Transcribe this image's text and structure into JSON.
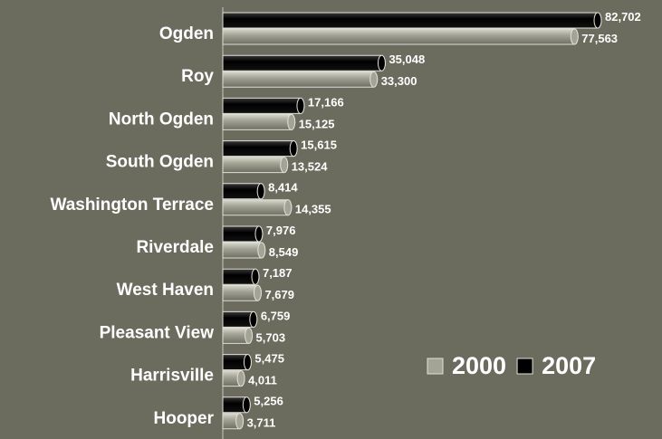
{
  "chart_data": {
    "type": "bar",
    "orientation": "horizontal",
    "categories": [
      "Ogden",
      "Roy",
      "North Ogden",
      "South Ogden",
      "Washington Terrace",
      "Riverdale",
      "West Haven",
      "Pleasant View",
      "Harrisville",
      "Hooper"
    ],
    "series": [
      {
        "name": "2000",
        "color": "#a3a396",
        "values": [
          77563,
          33300,
          15125,
          13524,
          14355,
          8549,
          7679,
          5703,
          4011,
          3711
        ],
        "value_labels": [
          "77,563",
          "33,300",
          "15,125",
          "13,524",
          "14,355",
          "8,549",
          "7,679",
          "5,703",
          "4,011",
          "3,711"
        ]
      },
      {
        "name": "2007",
        "color": "#000000",
        "values": [
          82702,
          35048,
          17166,
          15615,
          8414,
          7976,
          7187,
          6759,
          5475,
          5256
        ],
        "value_labels": [
          "82,702",
          "35,048",
          "17,166",
          "15,615",
          "8,414",
          "7,976",
          "7,187",
          "6,759",
          "5,475",
          "5,256"
        ]
      }
    ]
  }
}
